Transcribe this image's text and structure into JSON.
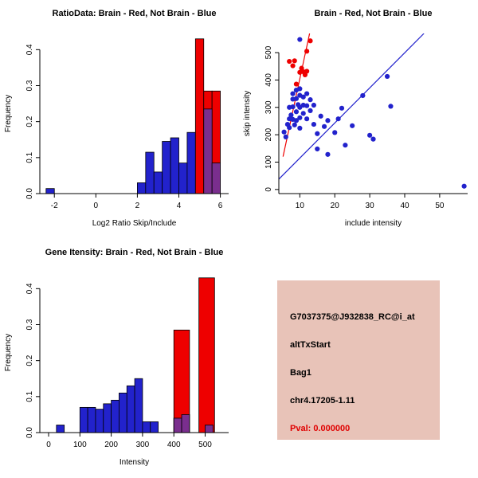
{
  "colors": {
    "blue": "#2222CC",
    "red": "#EE0000",
    "overlap": "#7A2E8E",
    "axis": "#000000",
    "text": "#000000",
    "background": "#FFFFFF",
    "info_bg": "#E8C3B8",
    "pval_red": "#E00000"
  },
  "info": {
    "probe": "G7037375@J932838_RC@i_at",
    "event": "altTxStart",
    "gene": "Bag1",
    "locus": "chr4.17205-1.11",
    "pval": "Pval: 0.000000"
  },
  "chart_data": [
    {
      "id": "ratio-hist",
      "type": "bar",
      "title": "RatioData: Brain - Red, Not Brain - Blue",
      "xlabel": "Log2 Ratio Skip/Include",
      "ylabel": "Frequency",
      "xlim": [
        -2.7,
        6.4
      ],
      "ylim": [
        0,
        0.445
      ],
      "grid": false,
      "legend": "none",
      "xticks": [
        {
          "v": -2,
          "l": "-2"
        },
        {
          "v": 0,
          "l": "0"
        },
        {
          "v": 2,
          "l": "2"
        },
        {
          "v": 4,
          "l": "4"
        },
        {
          "v": 6,
          "l": "6"
        }
      ],
      "yticks": [
        {
          "v": 0,
          "l": "0.0"
        },
        {
          "v": 0.1,
          "l": "0.1"
        },
        {
          "v": 0.2,
          "l": "0.2"
        },
        {
          "v": 0.3,
          "l": "0.3"
        },
        {
          "v": 0.4,
          "l": "0.4"
        }
      ],
      "series": [
        {
          "name": "not-brain-blue",
          "color_key": "blue",
          "bin_width": 0.4,
          "bins": [
            [
              -2.4,
              0.014
            ],
            [
              2.0,
              0.03
            ],
            [
              2.4,
              0.115
            ],
            [
              2.8,
              0.06
            ],
            [
              3.2,
              0.145
            ],
            [
              3.6,
              0.155
            ],
            [
              4.0,
              0.085
            ],
            [
              4.4,
              0.17
            ],
            [
              5.2,
              0.235
            ],
            [
              5.6,
              0.085
            ]
          ]
        },
        {
          "name": "brain-red",
          "color_key": "red",
          "bin_width": 0.4,
          "bins": [
            [
              4.8,
              0.43
            ],
            [
              5.2,
              0.285
            ],
            [
              5.6,
              0.285
            ]
          ]
        },
        {
          "name": "overlap-purple",
          "color_key": "overlap",
          "bin_width": 0.4,
          "bins": [
            [
              5.2,
              0.235
            ],
            [
              5.6,
              0.085
            ]
          ]
        }
      ]
    },
    {
      "id": "scatter",
      "type": "scatter",
      "title": "Brain - Red, Not Brain - Blue",
      "xlabel": "include intensity",
      "ylabel": "skip intensity",
      "xlim": [
        4,
        58
      ],
      "ylim": [
        -15,
        570
      ],
      "grid": false,
      "legend": "none",
      "xticks": [
        {
          "v": 10,
          "l": "10"
        },
        {
          "v": 20,
          "l": "20"
        },
        {
          "v": 30,
          "l": "30"
        },
        {
          "v": 40,
          "l": "40"
        },
        {
          "v": 50,
          "l": "50"
        }
      ],
      "yticks": [
        {
          "v": 0,
          "l": "0"
        },
        {
          "v": 100,
          "l": "100"
        },
        {
          "v": 200,
          "l": "200"
        },
        {
          "v": 300,
          "l": "300"
        },
        {
          "v": 400,
          "l": "400"
        },
        {
          "v": 500,
          "l": "500"
        }
      ],
      "series": [
        {
          "name": "not-brain-blue",
          "color_key": "blue",
          "points": [
            [
              5.5,
              210
            ],
            [
              6,
              192
            ],
            [
              6.5,
              238
            ],
            [
              7,
              300
            ],
            [
              7,
              258
            ],
            [
              7,
              226
            ],
            [
              7.5,
              272
            ],
            [
              8,
              350
            ],
            [
              8,
              330
            ],
            [
              8,
              302
            ],
            [
              8,
              256
            ],
            [
              8.5,
              236
            ],
            [
              9,
              363
            ],
            [
              9,
              332
            ],
            [
              9,
              284
            ],
            [
              9,
              252
            ],
            [
              9.5,
              310
            ],
            [
              10,
              548
            ],
            [
              10,
              368
            ],
            [
              10,
              344
            ],
            [
              10,
              300
            ],
            [
              10,
              262
            ],
            [
              10,
              224
            ],
            [
              11,
              338
            ],
            [
              11,
              308
            ],
            [
              11,
              278
            ],
            [
              12,
              350
            ],
            [
              12,
              306
            ],
            [
              12,
              258
            ],
            [
              13,
              328
            ],
            [
              13,
              288
            ],
            [
              14,
              308
            ],
            [
              14,
              238
            ],
            [
              15,
              204
            ],
            [
              15,
              148
            ],
            [
              16,
              268
            ],
            [
              17,
              230
            ],
            [
              18,
              252
            ],
            [
              18,
              128
            ],
            [
              20,
              208
            ],
            [
              21,
              258
            ],
            [
              22,
              297
            ],
            [
              23,
              162
            ],
            [
              25,
              233
            ],
            [
              28,
              343
            ],
            [
              30,
              198
            ],
            [
              31,
              184
            ],
            [
              35,
              413
            ],
            [
              36,
              304
            ],
            [
              57,
              12
            ]
          ]
        },
        {
          "name": "brain-red",
          "color_key": "red",
          "points": [
            [
              7,
              468
            ],
            [
              8,
              452
            ],
            [
              8.5,
              470
            ],
            [
              9,
              385
            ],
            [
              10,
              428
            ],
            [
              10.5,
              443
            ],
            [
              11,
              430
            ],
            [
              11.5,
              419
            ],
            [
              12,
              432
            ],
            [
              12,
              505
            ],
            [
              13,
              543
            ]
          ]
        }
      ],
      "lines": [
        {
          "name": "red-fit",
          "color_key": "red",
          "x1": 5.2,
          "y1": 120,
          "x2": 12.8,
          "y2": 570
        },
        {
          "name": "blue-fit",
          "color_key": "blue",
          "x1": 3.0,
          "y1": 25,
          "x2": 45.5,
          "y2": 570
        }
      ]
    },
    {
      "id": "intensity-hist",
      "type": "bar",
      "title": "Gene Itensity: Brain - Red, Not Brain - Blue",
      "xlabel": "Intensity",
      "ylabel": "Frequency",
      "xlim": [
        -28,
        575
      ],
      "ylim": [
        0,
        0.445
      ],
      "grid": false,
      "legend": "none",
      "xticks": [
        {
          "v": 0,
          "l": "0"
        },
        {
          "v": 100,
          "l": "100"
        },
        {
          "v": 200,
          "l": "200"
        },
        {
          "v": 300,
          "l": "300"
        },
        {
          "v": 400,
          "l": "400"
        },
        {
          "v": 500,
          "l": "500"
        }
      ],
      "yticks": [
        {
          "v": 0,
          "l": "0.0"
        },
        {
          "v": 0.1,
          "l": "0.1"
        },
        {
          "v": 0.2,
          "l": "0.2"
        },
        {
          "v": 0.3,
          "l": "0.3"
        },
        {
          "v": 0.4,
          "l": "0.4"
        }
      ],
      "series": [
        {
          "name": "not-brain-blue",
          "color_key": "blue",
          "bin_width": 25,
          "bins": [
            [
              25,
              0.021
            ],
            [
              100,
              0.07
            ],
            [
              125,
              0.07
            ],
            [
              150,
              0.065
            ],
            [
              175,
              0.08
            ],
            [
              200,
              0.09
            ],
            [
              225,
              0.11
            ],
            [
              250,
              0.13
            ],
            [
              275,
              0.15
            ],
            [
              300,
              0.03
            ],
            [
              325,
              0.03
            ],
            [
              400,
              0.04
            ],
            [
              425,
              0.05
            ],
            [
              500,
              0.021
            ]
          ]
        },
        {
          "name": "brain-red",
          "color_key": "red",
          "bin_width": 50,
          "bins": [
            [
              400,
              0.285
            ],
            [
              480,
              0.43
            ]
          ]
        },
        {
          "name": "overlap-purple",
          "color_key": "overlap",
          "bin_width": 25,
          "bins": [
            [
              400,
              0.04
            ],
            [
              425,
              0.05
            ],
            [
              500,
              0.021
            ]
          ]
        }
      ]
    }
  ]
}
